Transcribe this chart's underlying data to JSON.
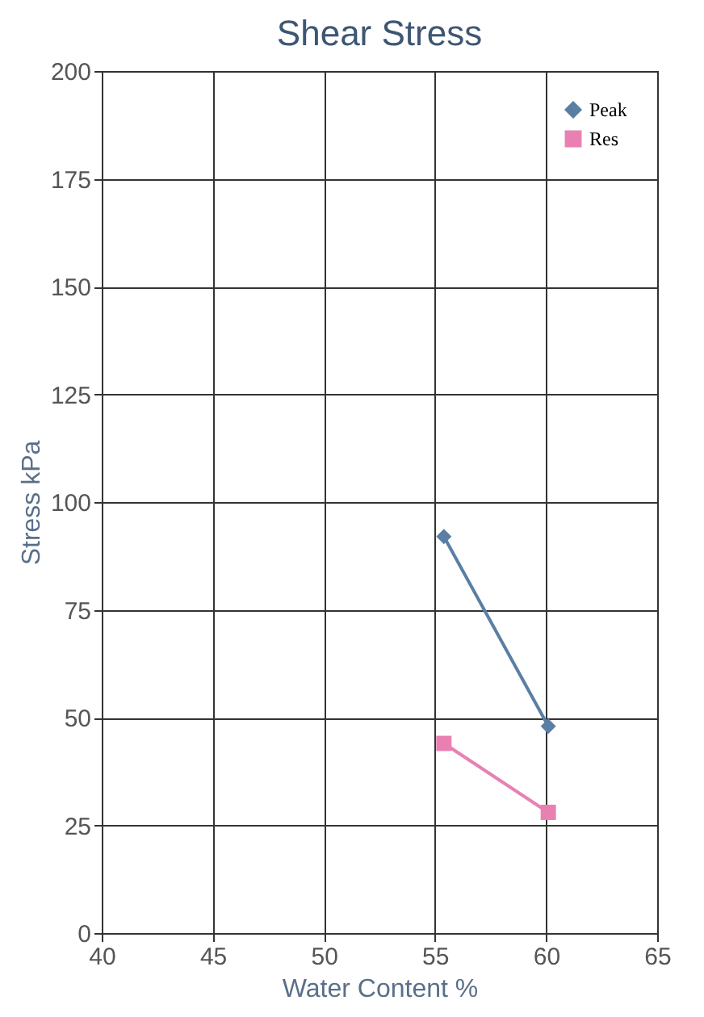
{
  "chart_data": {
    "type": "line",
    "title": "Shear Stress",
    "xlabel": "Water Content %",
    "ylabel": "Stress kPa",
    "xlim": [
      40,
      65
    ],
    "xticks": [
      40,
      45,
      50,
      55,
      60,
      65
    ],
    "ylim": [
      0,
      200
    ],
    "yticks": [
      0,
      25,
      50,
      75,
      100,
      125,
      150,
      175,
      200
    ],
    "x": [
      55.4,
      60.1
    ],
    "grid": true,
    "legend": "top right",
    "line_style": "solid",
    "series": [
      {
        "name": "Peak",
        "color": "#5b7fa4",
        "marker": "diamond",
        "values": [
          92,
          48
        ]
      },
      {
        "name": "Res",
        "color": "#e881b2",
        "marker": "square",
        "values": [
          44,
          28
        ]
      }
    ]
  }
}
